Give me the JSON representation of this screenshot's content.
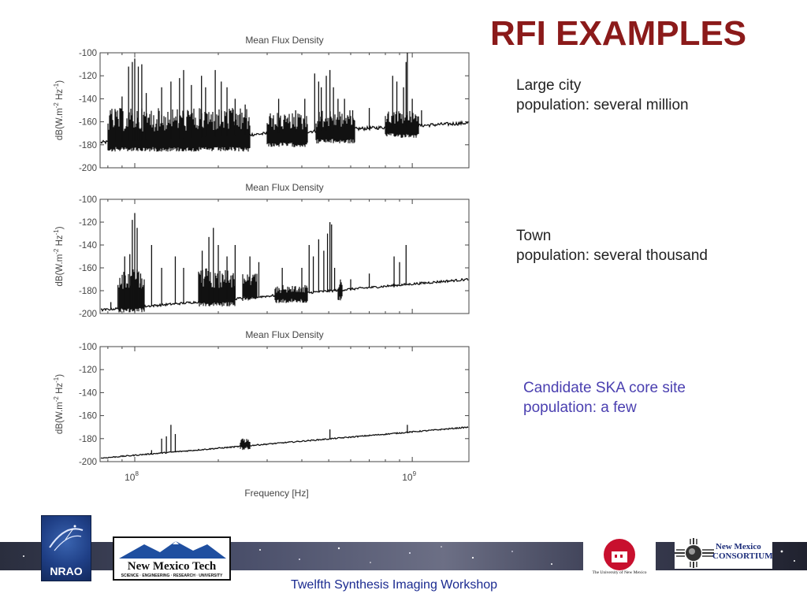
{
  "slide": {
    "title": "RFI EXAMPLES",
    "footer_text": "Twelfth Synthesis Imaging Workshop",
    "captions": [
      {
        "line1": "Large city",
        "line2": "population: several million"
      },
      {
        "line1": "Town",
        "line2": "population: several thousand"
      },
      {
        "line1": "Candidate SKA core site",
        "line2": "population: a few"
      }
    ],
    "logos": {
      "nrao": "NRAO",
      "nmt_name": "New Mexico Tech",
      "nmt_sub": "SCIENCE · ENGINEERING · RESEARCH · UNIVERSITY",
      "unm": "The University of New Mexico",
      "nmc_line1": "New Mexico",
      "nmc_line2": "CONSORTIUM"
    }
  },
  "chart_data": [
    {
      "type": "line",
      "title": "Mean Flux Density",
      "ylabel_parts": [
        "dB(W.m",
        "-2",
        " Hz",
        "-1",
        ")"
      ],
      "xlabel": "",
      "ylim": [
        -200,
        -100
      ],
      "yticks": [
        -100,
        -120,
        -140,
        -160,
        -180,
        -200
      ],
      "xscale": "log",
      "xlim_hz": [
        75000000,
        1600000000
      ],
      "baseline": [
        [
          75000000,
          -178
        ],
        [
          1600000000,
          -161
        ]
      ],
      "base_noise": 3,
      "bands": [
        {
          "x0": 80000000,
          "x1": 260000000,
          "lo": -182,
          "hi": -148
        },
        {
          "x0": 300000000,
          "x1": 420000000,
          "lo": -178,
          "hi": -152
        },
        {
          "x0": 450000000,
          "x1": 620000000,
          "lo": -175,
          "hi": -150
        },
        {
          "x0": 800000000,
          "x1": 1050000000,
          "lo": -170,
          "hi": -150
        }
      ],
      "spikes": [
        [
          85000000,
          -150
        ],
        [
          90000000,
          -138
        ],
        [
          95000000,
          -112
        ],
        [
          98000000,
          -108
        ],
        [
          100000000,
          -105
        ],
        [
          103000000,
          -112
        ],
        [
          106000000,
          -110
        ],
        [
          110000000,
          -135
        ],
        [
          125000000,
          -130
        ],
        [
          135000000,
          -125
        ],
        [
          145000000,
          -122
        ],
        [
          150000000,
          -115
        ],
        [
          160000000,
          -128
        ],
        [
          174000000,
          -120
        ],
        [
          180000000,
          -130
        ],
        [
          195000000,
          -115
        ],
        [
          205000000,
          -125
        ],
        [
          215000000,
          -130
        ],
        [
          230000000,
          -140
        ],
        [
          250000000,
          -145
        ],
        [
          330000000,
          -140
        ],
        [
          380000000,
          -150
        ],
        [
          410000000,
          -140
        ],
        [
          445000000,
          -118
        ],
        [
          460000000,
          -125
        ],
        [
          470000000,
          -130
        ],
        [
          490000000,
          -120
        ],
        [
          505000000,
          -115
        ],
        [
          520000000,
          -130
        ],
        [
          540000000,
          -140
        ],
        [
          570000000,
          -140
        ],
        [
          610000000,
          -150
        ],
        [
          700000000,
          -148
        ],
        [
          850000000,
          -120
        ],
        [
          880000000,
          -125
        ],
        [
          930000000,
          -130
        ],
        [
          950000000,
          -108
        ],
        [
          960000000,
          -100
        ],
        [
          1000000000,
          -140
        ],
        [
          1080000000,
          -150
        ]
      ]
    },
    {
      "type": "line",
      "title": "Mean Flux Density",
      "ylabel_parts": [
        "dB(W.m",
        "-2",
        " Hz",
        "-1",
        ")"
      ],
      "xlabel": "",
      "ylim": [
        -200,
        -100
      ],
      "yticks": [
        -100,
        -120,
        -140,
        -160,
        -180,
        -200
      ],
      "xscale": "log",
      "xlim_hz": [
        75000000,
        1600000000
      ],
      "baseline": [
        [
          75000000,
          -197
        ],
        [
          1600000000,
          -170
        ]
      ],
      "base_noise": 2,
      "bands": [
        {
          "x0": 88000000,
          "x1": 108000000,
          "lo": -195,
          "hi": -160
        },
        {
          "x0": 170000000,
          "x1": 230000000,
          "lo": -190,
          "hi": -160
        },
        {
          "x0": 245000000,
          "x1": 275000000,
          "lo": -185,
          "hi": -165
        },
        {
          "x0": 320000000,
          "x1": 420000000,
          "lo": -187,
          "hi": -175
        },
        {
          "x0": 540000000,
          "x1": 560000000,
          "lo": -185,
          "hi": -170
        }
      ],
      "spikes": [
        [
          82000000,
          -190
        ],
        [
          87000000,
          -175
        ],
        [
          92000000,
          -150
        ],
        [
          96000000,
          -148
        ],
        [
          98000000,
          -118
        ],
        [
          100000000,
          -112
        ],
        [
          102000000,
          -125
        ],
        [
          105000000,
          -165
        ],
        [
          115000000,
          -140
        ],
        [
          125000000,
          -160
        ],
        [
          140000000,
          -150
        ],
        [
          150000000,
          -160
        ],
        [
          175000000,
          -145
        ],
        [
          185000000,
          -133
        ],
        [
          192000000,
          -125
        ],
        [
          200000000,
          -140
        ],
        [
          215000000,
          -150
        ],
        [
          230000000,
          -140
        ],
        [
          260000000,
          -150
        ],
        [
          280000000,
          -155
        ],
        [
          340000000,
          -160
        ],
        [
          400000000,
          -160
        ],
        [
          425000000,
          -140
        ],
        [
          440000000,
          -150
        ],
        [
          460000000,
          -135
        ],
        [
          480000000,
          -145
        ],
        [
          495000000,
          -130
        ],
        [
          505000000,
          -120
        ],
        [
          512000000,
          -122
        ],
        [
          525000000,
          -160
        ],
        [
          600000000,
          -170
        ],
        [
          700000000,
          -165
        ],
        [
          860000000,
          -150
        ],
        [
          900000000,
          -155
        ],
        [
          950000000,
          -140
        ]
      ]
    },
    {
      "type": "line",
      "title": "Mean Flux Density",
      "ylabel_parts": [
        "dB(W.m",
        "-2",
        " Hz",
        "-1",
        ")"
      ],
      "xlabel": "Frequency [Hz]",
      "ylim": [
        -200,
        -100
      ],
      "yticks": [
        -100,
        -120,
        -140,
        -160,
        -180,
        -200
      ],
      "xscale": "log",
      "xticks": [
        {
          "value": 100000000,
          "base": "10",
          "exp": "8"
        },
        {
          "value": 1000000000,
          "base": "10",
          "exp": "9"
        }
      ],
      "xlim_hz": [
        75000000,
        1600000000
      ],
      "baseline": [
        [
          75000000,
          -197
        ],
        [
          1600000000,
          -170
        ]
      ],
      "base_noise": 1,
      "bands": [
        {
          "x0": 240000000,
          "x1": 260000000,
          "lo": -186,
          "hi": -180
        }
      ],
      "spikes": [
        [
          115000000,
          -190
        ],
        [
          125000000,
          -180
        ],
        [
          130000000,
          -178
        ],
        [
          135000000,
          -168
        ],
        [
          140000000,
          -176
        ],
        [
          245000000,
          -180
        ],
        [
          505000000,
          -172
        ],
        [
          960000000,
          -168
        ]
      ]
    }
  ]
}
